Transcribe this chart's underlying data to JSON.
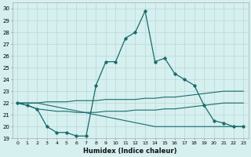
{
  "xlabel": "Humidex (Indice chaleur)",
  "bg_color": "#d6efef",
  "line_color": "#1a6b6b",
  "grid_color": "#b8d8d8",
  "xlim": [
    -0.5,
    23.5
  ],
  "ylim": [
    19,
    30.5
  ],
  "yticks": [
    19,
    20,
    21,
    22,
    23,
    24,
    25,
    26,
    27,
    28,
    29,
    30
  ],
  "xticks": [
    0,
    1,
    2,
    3,
    4,
    5,
    6,
    7,
    8,
    9,
    10,
    11,
    12,
    13,
    14,
    15,
    16,
    17,
    18,
    19,
    20,
    21,
    22,
    23
  ],
  "series": [
    {
      "x": [
        0,
        1,
        2,
        3,
        4,
        5,
        6,
        7,
        8,
        9,
        10,
        11,
        12,
        13,
        14,
        15,
        16,
        17,
        18,
        19,
        20,
        21,
        22,
        23
      ],
      "y": [
        22,
        21.8,
        21.5,
        20,
        19.5,
        19.5,
        19.2,
        19.2,
        23.5,
        25.5,
        25.5,
        27.5,
        28,
        29.8,
        25.5,
        25.8,
        24.5,
        24,
        23.5,
        21.8,
        20.5,
        20.3,
        20,
        20
      ],
      "marker": "D",
      "markersize": 1.8,
      "linewidth": 0.9
    },
    {
      "x": [
        0,
        1,
        2,
        3,
        4,
        5,
        6,
        7,
        8,
        9,
        10,
        11,
        12,
        13,
        14,
        15,
        16,
        17,
        18,
        19,
        20,
        21,
        22,
        23
      ],
      "y": [
        22,
        21.8,
        21.5,
        21.4,
        21.3,
        21.3,
        21.2,
        21.2,
        21.2,
        21.3,
        21.3,
        21.3,
        21.4,
        21.4,
        21.4,
        21.5,
        21.5,
        21.6,
        21.7,
        21.8,
        21.9,
        22.0,
        22.0,
        22.0
      ],
      "marker": null,
      "linewidth": 0.8
    },
    {
      "x": [
        0,
        1,
        2,
        3,
        4,
        5,
        6,
        7,
        8,
        9,
        10,
        11,
        12,
        13,
        14,
        15,
        16,
        17,
        18,
        19,
        20,
        21,
        22,
        23
      ],
      "y": [
        22,
        22.0,
        22.0,
        22.1,
        22.1,
        22.1,
        22.2,
        22.2,
        22.2,
        22.3,
        22.3,
        22.3,
        22.3,
        22.4,
        22.4,
        22.5,
        22.5,
        22.6,
        22.7,
        22.8,
        22.9,
        23.0,
        23.0,
        23.0
      ],
      "marker": null,
      "linewidth": 0.8
    },
    {
      "x": [
        0,
        2,
        14,
        23
      ],
      "y": [
        22,
        22,
        20,
        20
      ],
      "marker": null,
      "linewidth": 0.8
    }
  ]
}
